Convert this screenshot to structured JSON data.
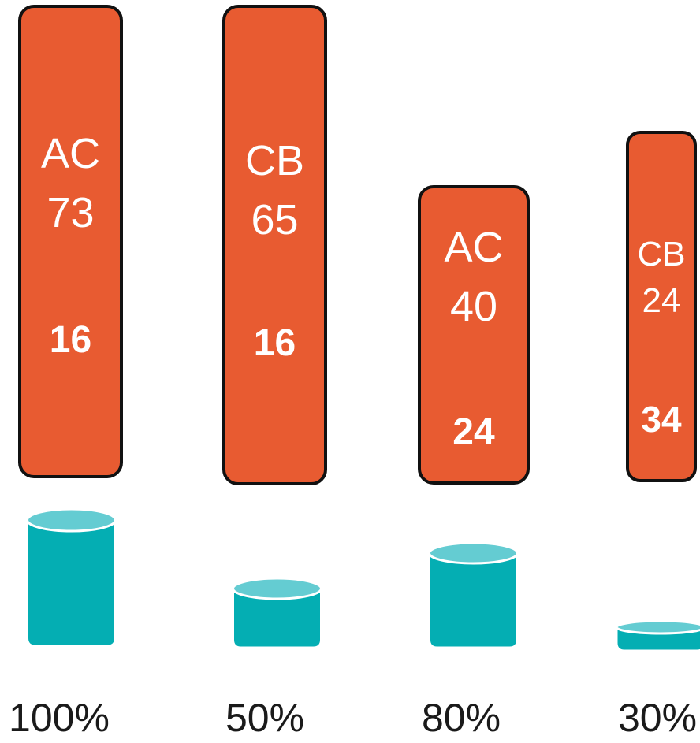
{
  "colors": {
    "bar_fill": "#E85B31",
    "bar_stroke": "#111111",
    "cylinder_body": "#04AEB3",
    "cylinder_top": "#64CCD2",
    "cylinder_rim": "#FFFFFF",
    "label_text": "#FFFFFF",
    "caption_text": "#1A1A1A"
  },
  "columns": [
    {
      "code": "AC",
      "value": "73",
      "count": "16",
      "percent": "100%",
      "fill_fraction": 1.0
    },
    {
      "code": "CB",
      "value": "65",
      "count": "16",
      "percent": "50%",
      "fill_fraction": 0.5
    },
    {
      "code": "AC",
      "value": "40",
      "count": "24",
      "percent": "80%",
      "fill_fraction": 0.8
    },
    {
      "code": "CB",
      "value": "24",
      "count": "34",
      "percent": "30%",
      "fill_fraction": 0.3
    }
  ]
}
